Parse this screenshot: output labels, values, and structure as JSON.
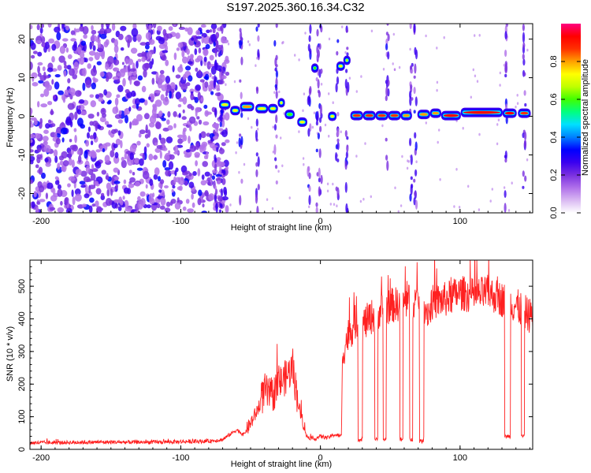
{
  "title": "S197.2025.360.16.34.C32",
  "chart_data": [
    {
      "type": "heatmap",
      "name": "spectrogram",
      "xlabel": "Height of straight line (km)",
      "ylabel": "Frequency (Hz)",
      "xlim": [
        -208,
        152
      ],
      "ylim": [
        -25,
        24
      ],
      "xticks": [
        -200,
        -100,
        0,
        100
      ],
      "yticks": [
        -20,
        -10,
        0,
        10,
        20
      ],
      "xtick_labels": [
        "-200",
        "-100",
        "0",
        "100"
      ],
      "ytick_labels": [
        "-20",
        "-10",
        "0",
        "10",
        "20"
      ],
      "colorbar": {
        "label": "Normalized spectral amplitude",
        "range": [
          0.0,
          1.0
        ],
        "ticks": [
          0.0,
          0.2,
          0.4,
          0.6,
          0.8
        ],
        "tick_labels": [
          "0.0",
          "0.2",
          "0.4",
          "0.6",
          "0.8"
        ],
        "colors": [
          "#ffffff",
          "#d9b8f2",
          "#b070ea",
          "#7a30e0",
          "#3a00f0",
          "#0000ff",
          "#0080ff",
          "#00e0ff",
          "#00ff80",
          "#40ff00",
          "#c0ff00",
          "#ffff00",
          "#ffa000",
          "#ff3000",
          "#ff0000",
          "#ff0080"
        ]
      },
      "noise_region_x": [
        -208,
        -70
      ],
      "signal_track": [
        {
          "x0": -72,
          "x1": -65,
          "freq": 3.0,
          "amp": 0.75
        },
        {
          "x0": -64,
          "x1": -58,
          "freq": 1.5,
          "amp": 0.7
        },
        {
          "x0": -57,
          "x1": -48,
          "freq": 2.5,
          "amp": 0.8
        },
        {
          "x0": -46,
          "x1": -38,
          "freq": 2.0,
          "amp": 0.7
        },
        {
          "x0": -37,
          "x1": -31,
          "freq": 2.0,
          "amp": 0.7
        },
        {
          "x0": -30,
          "x1": -26,
          "freq": 3.5,
          "amp": 0.75
        },
        {
          "x0": -25,
          "x1": -19,
          "freq": 0.5,
          "amp": 0.6
        },
        {
          "x0": -16,
          "x1": -10,
          "freq": -1.5,
          "amp": 0.7
        },
        {
          "x0": -6,
          "x1": -2,
          "freq": 12.5,
          "amp": 0.6
        },
        {
          "x0": 6,
          "x1": 11,
          "freq": 0.0,
          "amp": 0.7
        },
        {
          "x0": 12,
          "x1": 17,
          "freq": 13.0,
          "amp": 0.7
        },
        {
          "x0": 17,
          "x1": 21,
          "freq": 14.5,
          "amp": 0.65
        },
        {
          "x0": 22,
          "x1": 30,
          "freq": 0.2,
          "amp": 0.85
        },
        {
          "x0": 31,
          "x1": 39,
          "freq": 0.2,
          "amp": 0.85
        },
        {
          "x0": 40,
          "x1": 48,
          "freq": 0.2,
          "amp": 0.85
        },
        {
          "x0": 49,
          "x1": 57,
          "freq": 0.2,
          "amp": 0.85
        },
        {
          "x0": 58,
          "x1": 65,
          "freq": 0.2,
          "amp": 0.8
        },
        {
          "x0": 70,
          "x1": 78,
          "freq": 0.5,
          "amp": 0.8
        },
        {
          "x0": 79,
          "x1": 86,
          "freq": 0.8,
          "amp": 0.8
        },
        {
          "x0": 87,
          "x1": 100,
          "freq": 0.2,
          "amp": 0.95
        },
        {
          "x0": 101,
          "x1": 130,
          "freq": 1.0,
          "amp": 0.95
        },
        {
          "x0": 131,
          "x1": 140,
          "freq": 0.8,
          "amp": 0.9
        },
        {
          "x0": 142,
          "x1": 150,
          "freq": 0.8,
          "amp": 0.85
        }
      ],
      "vertical_streaks_x": [
        -75,
        -71,
        -57,
        -45,
        -32,
        -8,
        -2,
        0,
        12,
        19,
        48,
        65,
        68,
        133,
        146
      ]
    },
    {
      "type": "line",
      "name": "snr",
      "xlabel": "Height of straight line (km)",
      "ylabel": "SNR (10 * v/v)",
      "xlim": [
        -208,
        152
      ],
      "ylim": [
        0,
        580
      ],
      "xticks": [
        -200,
        -100,
        0,
        100
      ],
      "yticks": [
        0,
        100,
        200,
        300,
        400,
        500
      ],
      "xtick_labels": [
        "-200",
        "-100",
        "0",
        "100"
      ],
      "ytick_labels": [
        "0",
        "100",
        "200",
        "300",
        "400",
        "500"
      ],
      "color": "#ff2020",
      "x": [
        -208,
        -160,
        -120,
        -80,
        -70,
        -60,
        -55,
        -50,
        -45,
        -40,
        -35,
        -30,
        -25,
        -20,
        -18,
        -15,
        -12,
        -10,
        -5,
        0,
        5,
        10,
        15,
        16,
        20,
        25,
        30,
        35,
        40,
        50,
        60,
        70,
        78,
        80,
        90,
        100,
        110,
        120,
        130,
        140,
        150
      ],
      "y": [
        20,
        22,
        22,
        25,
        30,
        60,
        45,
        80,
        120,
        180,
        160,
        200,
        220,
        250,
        200,
        120,
        80,
        40,
        30,
        40,
        35,
        45,
        40,
        300,
        350,
        390,
        380,
        400,
        420,
        440,
        450,
        460,
        420,
        450,
        460,
        480,
        470,
        480,
        460,
        440,
        410
      ],
      "dropouts": [
        {
          "x0": 27,
          "x1": 30,
          "y": 30
        },
        {
          "x0": 39,
          "x1": 41,
          "y": 30
        },
        {
          "x0": 45,
          "x1": 47,
          "y": 30
        },
        {
          "x0": 57,
          "x1": 59,
          "y": 30
        },
        {
          "x0": 64,
          "x1": 66,
          "y": 30
        },
        {
          "x0": 71,
          "x1": 74,
          "y": 25
        },
        {
          "x0": 132,
          "x1": 136,
          "y": 40
        },
        {
          "x0": 144,
          "x1": 146,
          "y": 40
        }
      ]
    }
  ]
}
